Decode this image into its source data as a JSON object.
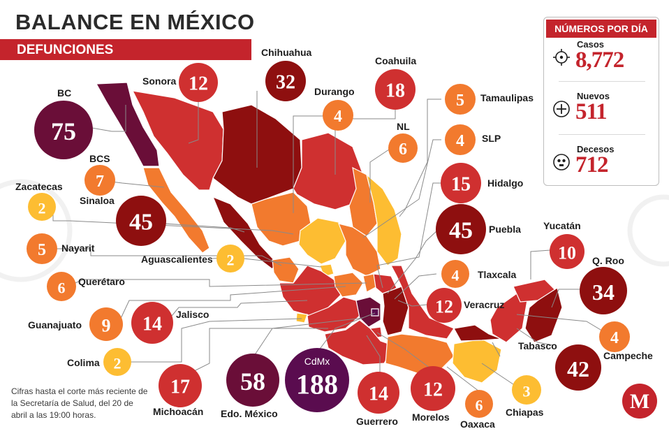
{
  "header": {
    "title_part1": "BALANCE EN ",
    "title_part2": "MÉXICO",
    "subtitle": "DEFUNCIONES"
  },
  "panel": {
    "heading": "NÚMEROS POR DÍA",
    "casos_label": "Casos",
    "casos_value": "8,772",
    "nuevos_label": "Nuevos",
    "nuevos_value": "511",
    "decesos_label": "Decesos",
    "decesos_value": "712",
    "icons": [
      "virus-icon",
      "plus-icon",
      "skull-icon"
    ]
  },
  "note": "Cifras hasta el corte más reciente de la Secretaría de Salud, del 20 de abril a las 19:00 horas.",
  "colors": {
    "accent": "#c4242c",
    "darkest": "#6a0e38",
    "maroon": "#8e0f0f",
    "red": "#cf3030",
    "orange": "#f27a2e",
    "yellow": "#fdbd32",
    "purple": "#5a0c4f"
  },
  "states": [
    {
      "name": "BC",
      "value": "75"
    },
    {
      "name": "Sonora",
      "value": "12"
    },
    {
      "name": "Chihuahua",
      "value": "32"
    },
    {
      "name": "Coahuila",
      "value": "18"
    },
    {
      "name": "Durango",
      "value": "4"
    },
    {
      "name": "Tamaulipas",
      "value": "5"
    },
    {
      "name": "NL",
      "value": "6"
    },
    {
      "name": "SLP",
      "value": "4"
    },
    {
      "name": "BCS",
      "value": "7"
    },
    {
      "name": "Zacatecas",
      "value": "2"
    },
    {
      "name": "Sinaloa",
      "value": "45"
    },
    {
      "name": "Hidalgo",
      "value": "15"
    },
    {
      "name": "Puebla",
      "value": "45"
    },
    {
      "name": "Nayarit",
      "value": "5"
    },
    {
      "name": "Aguascalientes",
      "value": "2"
    },
    {
      "name": "Yucatán",
      "value": "10"
    },
    {
      "name": "Q. Roo",
      "value": "34"
    },
    {
      "name": "Tlaxcala",
      "value": "4"
    },
    {
      "name": "Querétaro",
      "value": "6"
    },
    {
      "name": "Veracruz",
      "value": "12"
    },
    {
      "name": "Guanajuato",
      "value": "9"
    },
    {
      "name": "Jalisco",
      "value": "14"
    },
    {
      "name": "Tabasco",
      "value": "42"
    },
    {
      "name": "Campeche",
      "value": "4"
    },
    {
      "name": "Colima",
      "value": "2"
    },
    {
      "name": "Michoacán",
      "value": "17"
    },
    {
      "name": "Edo. México",
      "value": "58"
    },
    {
      "name": "CdMx",
      "value": "188"
    },
    {
      "name": "Guerrero",
      "value": "14"
    },
    {
      "name": "Morelos",
      "value": "12"
    },
    {
      "name": "Oaxaca",
      "value": "6"
    },
    {
      "name": "Chiapas",
      "value": "3"
    }
  ],
  "logo": "M"
}
